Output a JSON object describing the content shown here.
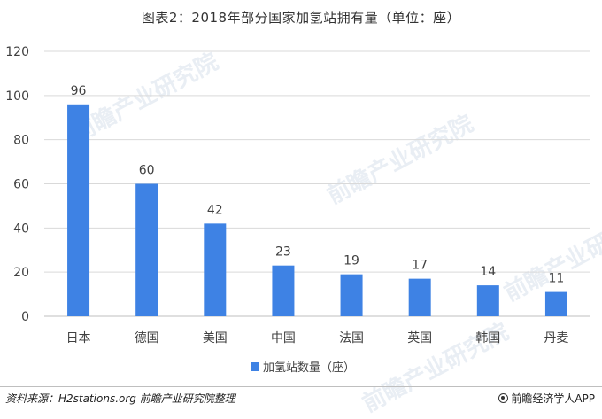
{
  "chart_data": {
    "type": "bar",
    "title": "图表2：2018年部分国家加氢站拥有量（单位：座）",
    "categories": [
      "日本",
      "德国",
      "美国",
      "中国",
      "法国",
      "英国",
      "韩国",
      "丹麦"
    ],
    "series": [
      {
        "name": "加氢站数量（座）",
        "values": [
          96,
          60,
          42,
          23,
          19,
          17,
          14,
          11
        ],
        "color": "#3e82e4"
      }
    ],
    "ylim": [
      0,
      120
    ],
    "yticks": [
      0,
      20,
      40,
      60,
      80,
      100,
      120
    ],
    "grid": true,
    "legend_position": "bottom"
  },
  "footer": {
    "source": "资料来源：H2stations.org  前瞻产业研究院整理",
    "brand": "前瞻经济学人APP"
  },
  "watermark": {
    "text": "前瞻产业研究院"
  },
  "colors": {
    "bar": "#3e82e4",
    "grid": "#d9d9d9",
    "axis": "#bfbfbf",
    "text": "#404040"
  }
}
